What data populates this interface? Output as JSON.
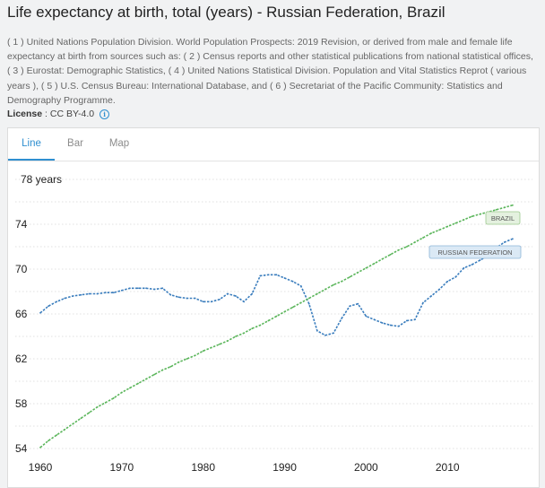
{
  "page": {
    "title": "Life expectancy at birth, total (years) - Russian Federation, Brazil",
    "sources": "( 1 ) United Nations Population Division. World Population Prospects: 2019 Revision, or derived from male and female life expectancy at birth from sources such as: ( 2 ) Census reports and other statistical publications from national statistical offices, ( 3 ) Eurostat: Demographic Statistics, ( 4 ) United Nations Statistical Division. Population and Vital Statistics Reprot ( various years ), ( 5 ) U.S. Census Bureau: International Database, and ( 6 ) Secretariat of the Pacific Community: Statistics and Demography Programme.",
    "license_label": "License",
    "license_value": " : CC BY-4.0",
    "info_glyph": "i"
  },
  "tabs": [
    {
      "label": "Line",
      "active": true
    },
    {
      "label": "Bar",
      "active": false
    },
    {
      "label": "Map",
      "active": false
    }
  ],
  "chart_data": {
    "type": "line",
    "title": "Life expectancy at birth, total (years) - Russian Federation, Brazil",
    "xlabel": "",
    "ylabel": "years",
    "unit_label": "78 years",
    "ylim": [
      54,
      78
    ],
    "xlim": [
      1960,
      2019
    ],
    "yticks": [
      54,
      58,
      62,
      66,
      70,
      74
    ],
    "xticks": [
      1960,
      1970,
      1980,
      1990,
      2000,
      2010
    ],
    "grid": true,
    "x": [
      1960,
      1961,
      1962,
      1963,
      1964,
      1965,
      1966,
      1967,
      1968,
      1969,
      1970,
      1971,
      1972,
      1973,
      1974,
      1975,
      1976,
      1977,
      1978,
      1979,
      1980,
      1981,
      1982,
      1983,
      1984,
      1985,
      1986,
      1987,
      1988,
      1989,
      1990,
      1991,
      1992,
      1993,
      1994,
      1995,
      1996,
      1997,
      1998,
      1999,
      2000,
      2001,
      2002,
      2003,
      2004,
      2005,
      2006,
      2007,
      2008,
      2009,
      2010,
      2011,
      2012,
      2013,
      2014,
      2015,
      2016,
      2017,
      2018
    ],
    "series": [
      {
        "name": "RUSSIAN FEDERATION",
        "label": "RUSSIAN FEDERATION",
        "color": "#3a7dbd",
        "values": [
          66.1,
          66.7,
          67.1,
          67.4,
          67.6,
          67.7,
          67.8,
          67.8,
          67.9,
          67.9,
          68.1,
          68.3,
          68.3,
          68.3,
          68.2,
          68.3,
          67.7,
          67.5,
          67.4,
          67.4,
          67.1,
          67.1,
          67.3,
          67.8,
          67.6,
          67.1,
          67.8,
          69.4,
          69.5,
          69.5,
          69.2,
          68.9,
          68.5,
          66.9,
          64.5,
          64.1,
          64.3,
          65.6,
          66.7,
          66.9,
          65.8,
          65.5,
          65.2,
          65.0,
          64.9,
          65.4,
          65.5,
          67.0,
          67.6,
          68.2,
          68.9,
          69.3,
          70.1,
          70.4,
          70.8,
          71.2,
          71.9,
          72.4,
          72.7
        ]
      },
      {
        "name": "BRAZIL",
        "label": "BRAZIL",
        "color": "#5ab55a",
        "values": [
          54.1,
          54.7,
          55.2,
          55.7,
          56.2,
          56.7,
          57.2,
          57.7,
          58.1,
          58.5,
          59.0,
          59.4,
          59.8,
          60.2,
          60.6,
          61.0,
          61.3,
          61.7,
          62.0,
          62.3,
          62.7,
          63.0,
          63.3,
          63.6,
          64.0,
          64.3,
          64.7,
          65.0,
          65.4,
          65.8,
          66.2,
          66.6,
          67.0,
          67.4,
          67.8,
          68.2,
          68.6,
          68.9,
          69.3,
          69.7,
          70.1,
          70.5,
          70.9,
          71.3,
          71.7,
          72.0,
          72.4,
          72.8,
          73.2,
          73.5,
          73.8,
          74.1,
          74.4,
          74.7,
          74.9,
          75.1,
          75.3,
          75.5,
          75.7
        ]
      }
    ]
  }
}
